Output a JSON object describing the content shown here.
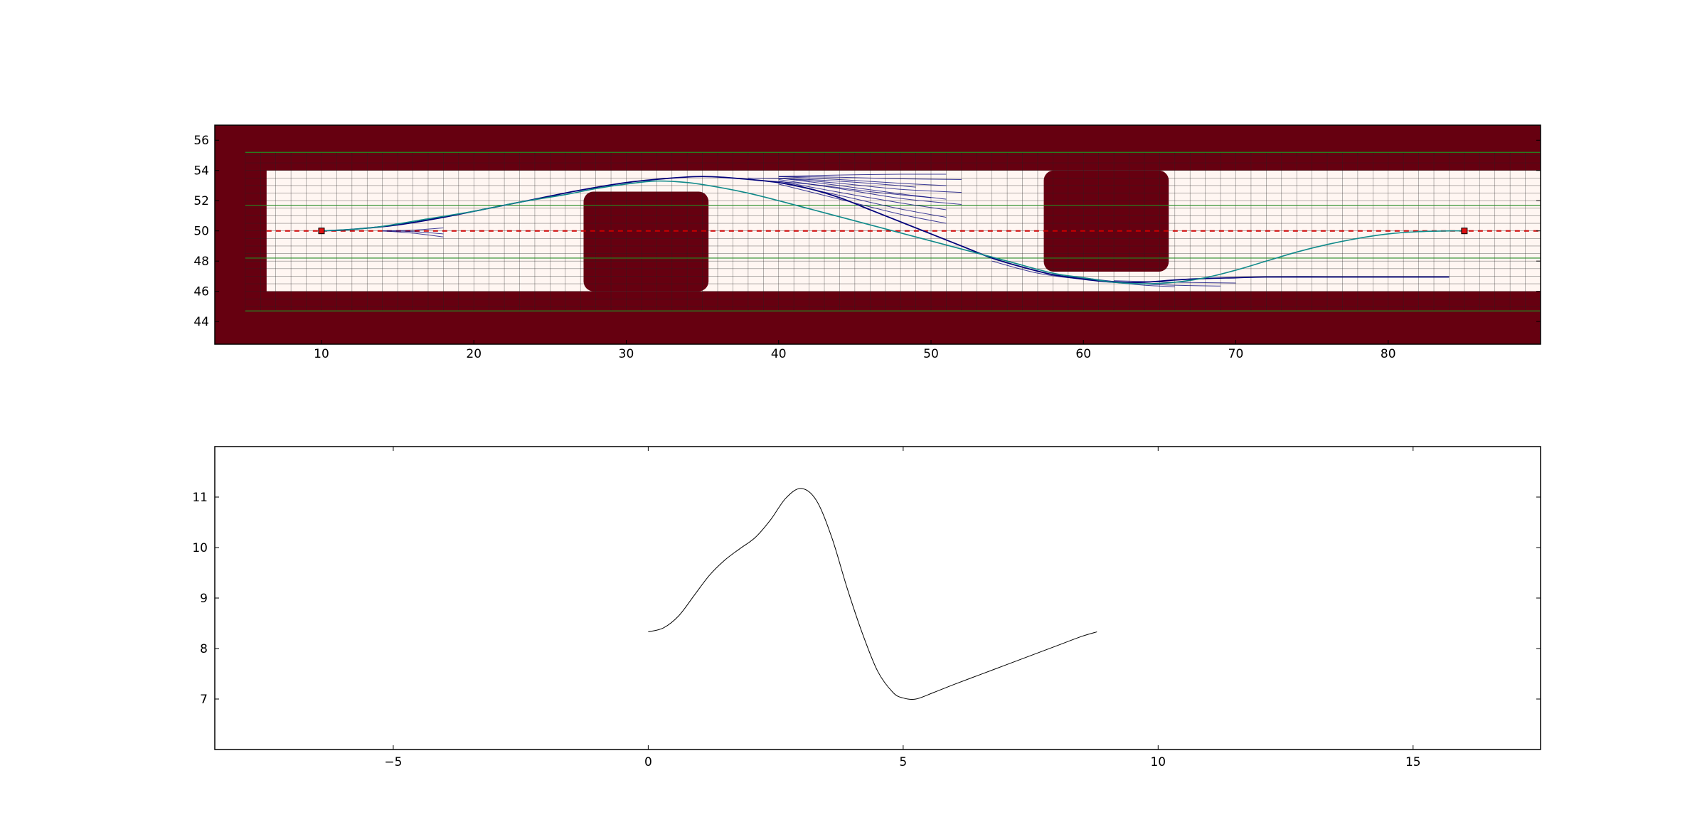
{
  "chart_data": [
    {
      "type": "heatmap",
      "xlim": [
        3,
        90
      ],
      "ylim": [
        42.5,
        57
      ],
      "xticks": [
        "10",
        "20",
        "30",
        "40",
        "50",
        "60",
        "70",
        "80"
      ],
      "yticks": [
        "44",
        "46",
        "48",
        "50",
        "52",
        "54",
        "56"
      ],
      "colors": {
        "obstacle": "#660010",
        "free": "#fff6f2",
        "grid": "#222222",
        "lane": "#228b22",
        "reference": "#cc0000",
        "candidates": "#00007a",
        "selected": "#118a8a"
      },
      "free_corridor": {
        "x": [
          6.4,
          90
        ],
        "y": [
          46,
          54
        ]
      },
      "obstacles": [
        {
          "x": [
            27.2,
            35.4
          ],
          "y": [
            46,
            52.6
          ]
        },
        {
          "x": [
            57.4,
            65.6
          ],
          "y": [
            47.3,
            54
          ]
        }
      ],
      "lane_lines_y": [
        44.7,
        48.2,
        51.7,
        55.2
      ],
      "grid_step": 1,
      "reference_line": {
        "y": 50,
        "x": [
          6.4,
          90
        ]
      },
      "start_point": [
        10,
        50
      ],
      "goal_point": [
        85,
        50
      ],
      "selected_path": {
        "x": [
          10,
          12,
          14,
          17,
          20,
          23,
          26,
          28,
          30,
          32,
          34,
          36,
          38,
          40,
          43,
          46,
          49,
          52,
          55,
          58,
          60,
          62,
          64,
          66,
          68,
          70,
          72,
          74,
          76,
          78,
          80,
          82,
          84,
          85
        ],
        "y": [
          50,
          50.1,
          50.3,
          50.8,
          51.3,
          51.9,
          52.4,
          52.8,
          53.1,
          53.3,
          53.2,
          52.9,
          52.5,
          52.0,
          51.2,
          50.4,
          49.6,
          48.8,
          48.0,
          47.2,
          46.9,
          46.6,
          46.5,
          46.6,
          46.9,
          47.4,
          48.0,
          48.6,
          49.1,
          49.5,
          49.8,
          49.95,
          50,
          50
        ]
      },
      "optimized_path": {
        "x": [
          10,
          12,
          15,
          18,
          21,
          24,
          27,
          30,
          33,
          35,
          37,
          40,
          42,
          44,
          46,
          48,
          50,
          52,
          54,
          56,
          58,
          60,
          62,
          64,
          66,
          68,
          70,
          72,
          76,
          80,
          84
        ],
        "y": [
          50,
          50.1,
          50.4,
          50.9,
          51.5,
          52.1,
          52.7,
          53.2,
          53.5,
          53.6,
          53.5,
          53.2,
          52.8,
          52.2,
          51.4,
          50.6,
          49.8,
          49.0,
          48.2,
          47.6,
          47.1,
          46.8,
          46.6,
          46.6,
          46.75,
          46.85,
          46.9,
          46.95,
          46.95,
          46.95,
          46.95
        ]
      },
      "candidate_trajectories": [
        {
          "x": [
            14,
            16,
            18
          ],
          "y": [
            50,
            49.85,
            49.6
          ]
        },
        {
          "x": [
            14,
            16,
            18
          ],
          "y": [
            50,
            49.95,
            49.8
          ]
        },
        {
          "x": [
            14,
            16,
            18
          ],
          "y": [
            50,
            50.05,
            50.2
          ]
        },
        {
          "x": [
            40,
            44,
            48,
            51
          ],
          "y": [
            53.6,
            53.7,
            53.75,
            53.75
          ]
        },
        {
          "x": [
            40,
            44,
            48,
            52
          ],
          "y": [
            53.6,
            53.55,
            53.45,
            53.4
          ]
        },
        {
          "x": [
            40,
            44,
            48,
            51
          ],
          "y": [
            53.6,
            53.4,
            53.15,
            53.0
          ]
        },
        {
          "x": [
            40,
            44,
            48,
            52
          ],
          "y": [
            53.5,
            53.15,
            52.75,
            52.55
          ]
        },
        {
          "x": [
            40,
            44,
            48,
            51
          ],
          "y": [
            53.5,
            53.0,
            52.45,
            52.1
          ]
        },
        {
          "x": [
            40,
            44,
            48,
            52
          ],
          "y": [
            53.4,
            52.8,
            52.15,
            51.75
          ]
        },
        {
          "x": [
            40,
            44,
            48,
            51
          ],
          "y": [
            53.3,
            52.55,
            51.85,
            51.4
          ]
        },
        {
          "x": [
            40,
            44,
            48,
            51
          ],
          "y": [
            53.2,
            52.35,
            51.45,
            50.9
          ]
        },
        {
          "x": [
            40,
            44,
            48,
            51
          ],
          "y": [
            53.1,
            52.1,
            51.1,
            50.5
          ]
        },
        {
          "x": [
            38,
            42,
            46,
            49
          ],
          "y": [
            53.5,
            53.4,
            53.15,
            52.9
          ]
        },
        {
          "x": [
            38,
            42,
            46,
            50
          ],
          "y": [
            53.4,
            53.1,
            52.6,
            52.2
          ]
        },
        {
          "x": [
            58,
            62,
            64,
            66
          ],
          "y": [
            47.1,
            46.6,
            46.4,
            46.3
          ]
        },
        {
          "x": [
            60,
            63,
            66,
            69
          ],
          "y": [
            46.9,
            46.55,
            46.4,
            46.35
          ]
        },
        {
          "x": [
            62,
            66,
            70
          ],
          "y": [
            46.7,
            46.6,
            46.55
          ]
        },
        {
          "x": [
            54,
            57,
            60,
            63
          ],
          "y": [
            48.0,
            47.2,
            46.8,
            46.6
          ]
        }
      ]
    },
    {
      "type": "line",
      "xlim": [
        -8.5,
        17.5
      ],
      "ylim": [
        6,
        12
      ],
      "xticks": [
        "−5",
        "0",
        "5",
        "10",
        "15"
      ],
      "xtick_values": [
        -5,
        0,
        5,
        10,
        15
      ],
      "yticks": [
        "7",
        "8",
        "9",
        "10",
        "11"
      ],
      "ytick_values": [
        7,
        8,
        9,
        10,
        11
      ],
      "line_color": "#000000",
      "series": [
        {
          "x": [
            0,
            0.3,
            0.6,
            0.9,
            1.2,
            1.5,
            1.8,
            2.1,
            2.4,
            2.7,
            3.0,
            3.3,
            3.6,
            3.9,
            4.2,
            4.5,
            4.8,
            5.0,
            5.25,
            5.6,
            6.0,
            6.5,
            7.0,
            7.5,
            8.0,
            8.5,
            8.8
          ],
          "y": [
            8.33,
            8.41,
            8.65,
            9.05,
            9.45,
            9.75,
            9.98,
            10.2,
            10.55,
            10.98,
            11.17,
            10.93,
            10.2,
            9.2,
            8.3,
            7.55,
            7.13,
            7.02,
            7.0,
            7.13,
            7.29,
            7.48,
            7.67,
            7.86,
            8.05,
            8.24,
            8.33
          ]
        }
      ]
    }
  ]
}
